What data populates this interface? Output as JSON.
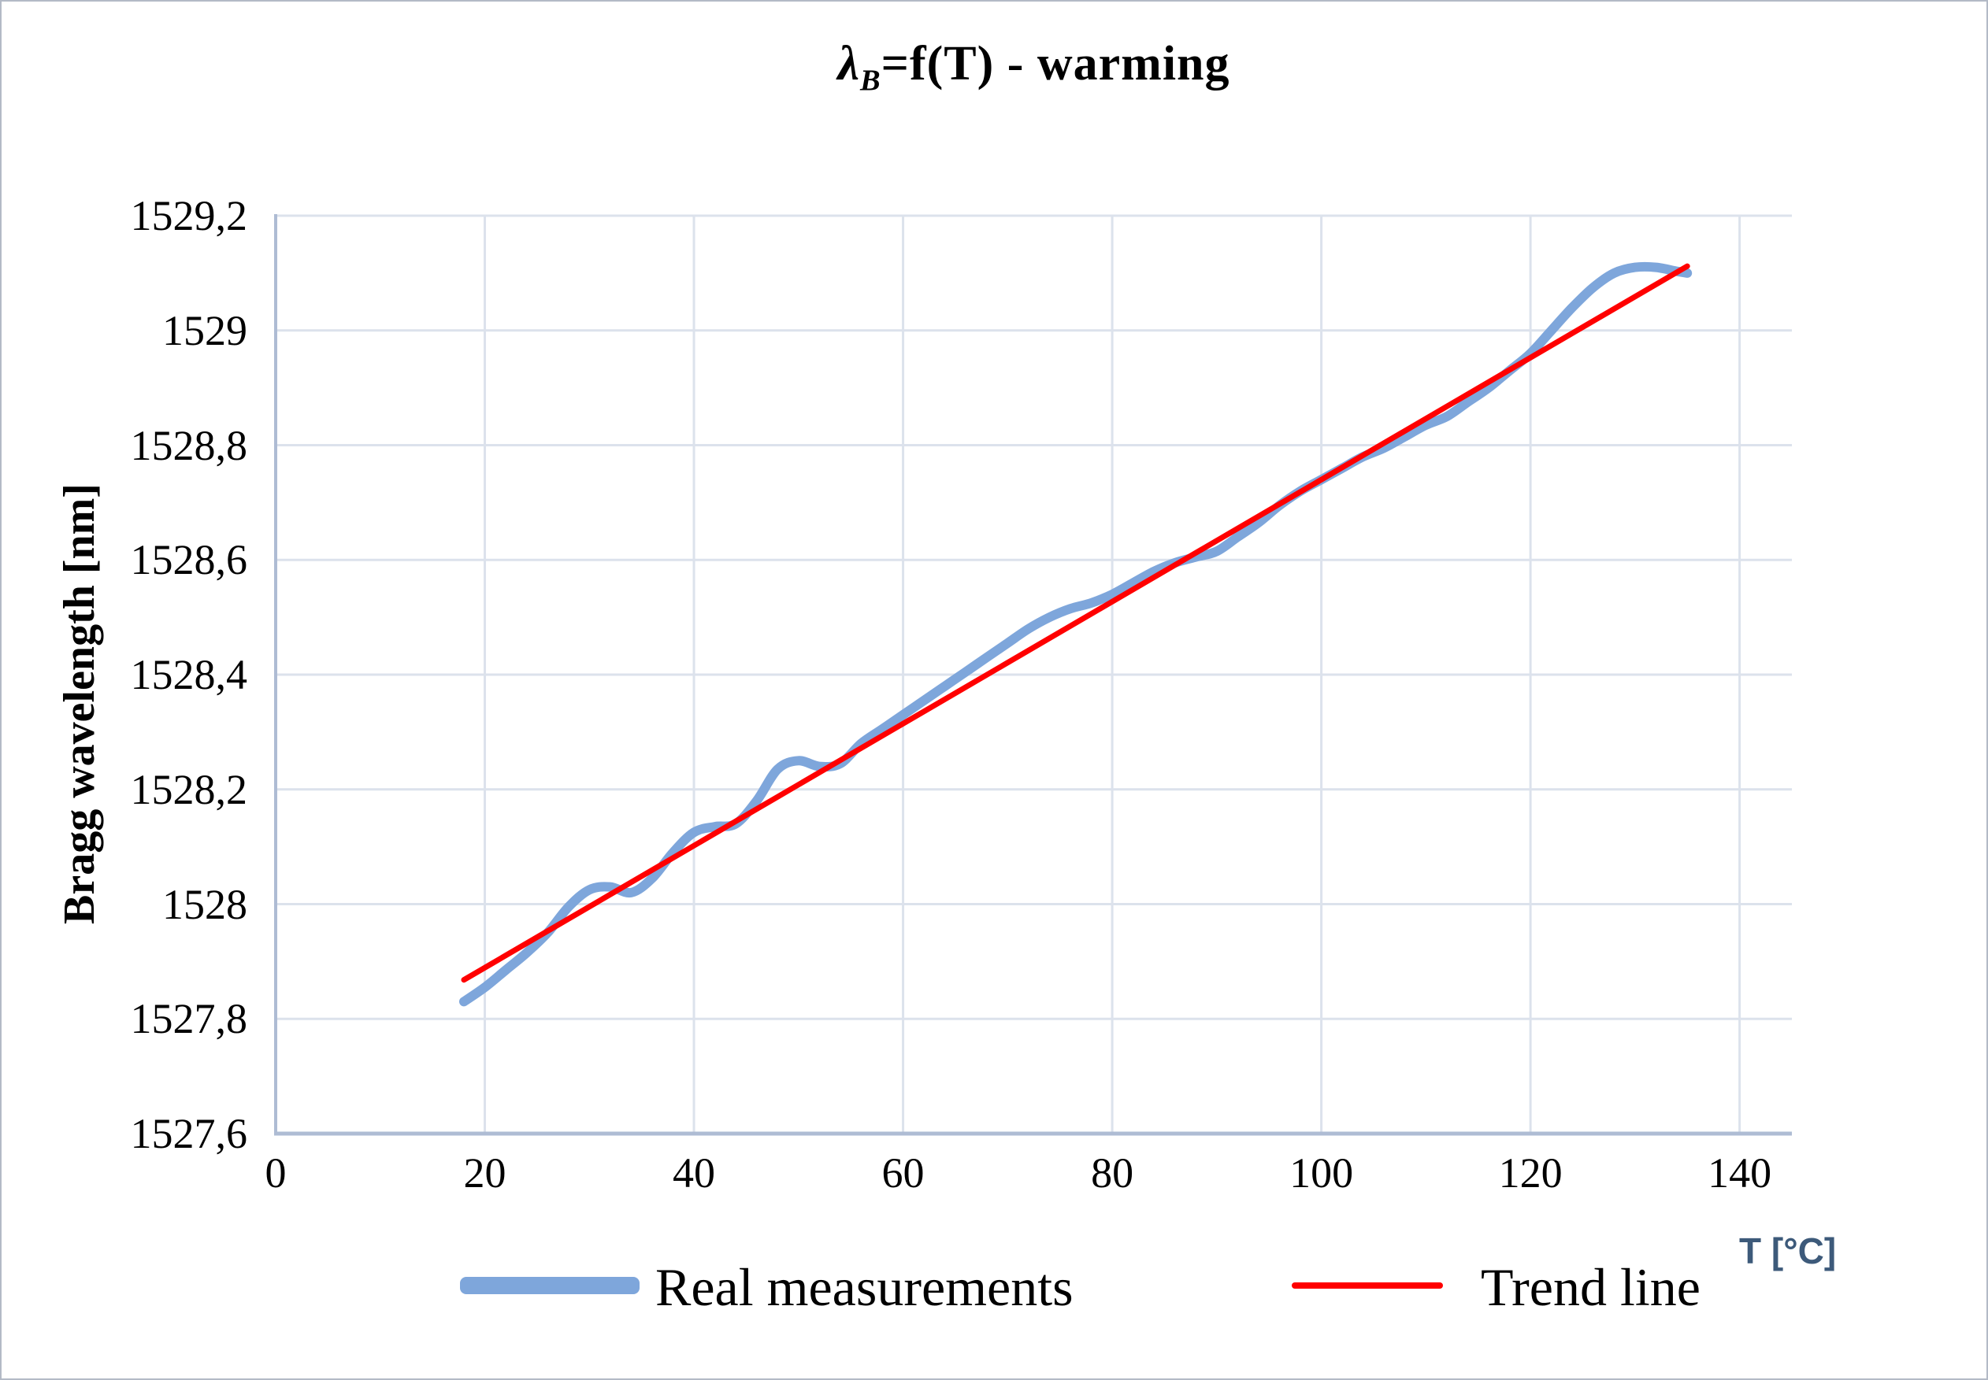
{
  "title": {
    "lambda": "λ",
    "sub": "B",
    "rest": "=f(T) - warming"
  },
  "axes": {
    "y_title": "Bragg wavelength [nm]",
    "x_unit": "T [°C]",
    "x_ticks": [
      {
        "value": 0,
        "label": "0"
      },
      {
        "value": 20,
        "label": "20"
      },
      {
        "value": 40,
        "label": "40"
      },
      {
        "value": 60,
        "label": "60"
      },
      {
        "value": 80,
        "label": "80"
      },
      {
        "value": 100,
        "label": "100"
      },
      {
        "value": 120,
        "label": "120"
      },
      {
        "value": 140,
        "label": "140"
      }
    ],
    "y_ticks": [
      {
        "value": 1527.6,
        "label": "1527,6"
      },
      {
        "value": 1527.8,
        "label": "1527,8"
      },
      {
        "value": 1528,
        "label": "1528"
      },
      {
        "value": 1528.2,
        "label": "1528,2"
      },
      {
        "value": 1528.4,
        "label": "1528,4"
      },
      {
        "value": 1528.6,
        "label": "1528,6"
      },
      {
        "value": 1528.8,
        "label": "1528,8"
      },
      {
        "value": 1529,
        "label": "1529"
      },
      {
        "value": 1529.2,
        "label": "1529,2"
      }
    ]
  },
  "legend": {
    "items": [
      {
        "label": "Real measurements",
        "color": "#7EA6DB",
        "swatch": "thick-line"
      },
      {
        "label": "Trend line",
        "color": "#FF0000",
        "swatch": "thin-line"
      }
    ]
  },
  "colors": {
    "measurements": "#7EA6DB",
    "trend": "#FF0000",
    "gridline": "#DCE2EC",
    "axis_line": "#AEBCD4",
    "tick_text": "#000000",
    "x_unit_text": "#3D5A7A",
    "border": "#B3BAC6"
  },
  "chart_data": {
    "type": "line",
    "title": "λB=f(T) - warming",
    "xlabel": "T [°C]",
    "ylabel": "Bragg wavelength [nm]",
    "xlim": [
      0,
      145
    ],
    "ylim": [
      1527.6,
      1529.2
    ],
    "x_tick_step": 20,
    "y_tick_step": 0.2,
    "grid": true,
    "legend_position": "bottom",
    "decimal_separator": ",",
    "series": [
      {
        "name": "Real measurements",
        "style": "smooth",
        "color": "#7EA6DB",
        "stroke_width": 12,
        "x": [
          18,
          20,
          22,
          24,
          26,
          28,
          30,
          32,
          34,
          36,
          38,
          40,
          42,
          44,
          46,
          48,
          50,
          52,
          54,
          56,
          58,
          60,
          62,
          64,
          66,
          68,
          70,
          72,
          74,
          76,
          78,
          80,
          82,
          84,
          86,
          88,
          90,
          92,
          94,
          96,
          98,
          100,
          102,
          104,
          106,
          108,
          110,
          112,
          114,
          116,
          118,
          120,
          122,
          124,
          126,
          128,
          130,
          132,
          134,
          135
        ],
        "y": [
          1527.83,
          1527.855,
          1527.885,
          1527.915,
          1527.95,
          1527.995,
          1528.025,
          1528.03,
          1528.02,
          1528.045,
          1528.09,
          1528.125,
          1528.135,
          1528.14,
          1528.18,
          1528.235,
          1528.25,
          1528.24,
          1528.245,
          1528.28,
          1528.305,
          1528.33,
          1528.355,
          1528.38,
          1528.405,
          1528.43,
          1528.455,
          1528.48,
          1528.5,
          1528.515,
          1528.525,
          1528.54,
          1528.56,
          1528.58,
          1528.595,
          1528.605,
          1528.615,
          1528.64,
          1528.665,
          1528.695,
          1528.72,
          1528.74,
          1528.76,
          1528.78,
          1528.795,
          1528.815,
          1528.835,
          1528.85,
          1528.875,
          1528.9,
          1528.93,
          1528.96,
          1529.0,
          1529.04,
          1529.075,
          1529.1,
          1529.11,
          1529.11,
          1529.103,
          1529.1
        ]
      },
      {
        "name": "Trend line",
        "style": "straight",
        "color": "#FF0000",
        "stroke_width": 7,
        "x": [
          18,
          135
        ],
        "y": [
          1527.868,
          1529.112
        ]
      }
    ]
  }
}
